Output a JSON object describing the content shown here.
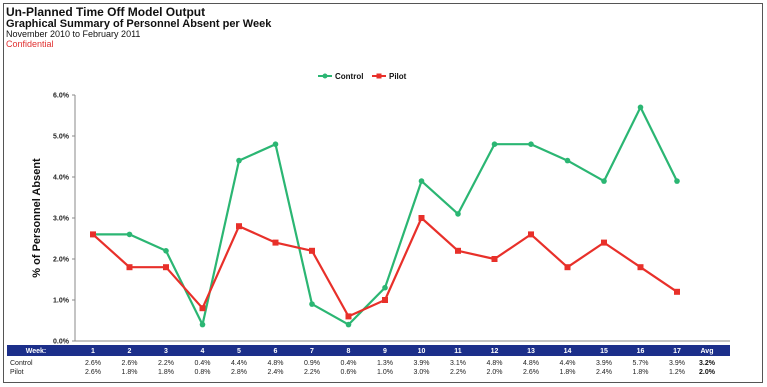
{
  "header": {
    "title": "Un-Planned Time Off Model Output",
    "subtitle": "Graphical Summary of Personnel Absent per Week",
    "date_range": "November 2010 to February 2011",
    "confidential": "Confidential"
  },
  "chart_data": {
    "type": "line",
    "ylabel": "% of Personnel Absent",
    "ylim": [
      0,
      6
    ],
    "yticks": [
      "0.0%",
      "1.0%",
      "2.0%",
      "3.0%",
      "4.0%",
      "5.0%",
      "6.0%"
    ],
    "grid": false,
    "legend_position": "top-center",
    "categories": [
      "1",
      "2",
      "3",
      "4",
      "5",
      "6",
      "7",
      "8",
      "9",
      "10",
      "11",
      "12",
      "13",
      "14",
      "15",
      "16",
      "17"
    ],
    "series": [
      {
        "name": "Control",
        "color": "#2bb673",
        "marker": "circle",
        "values": [
          2.6,
          2.6,
          2.2,
          0.4,
          4.4,
          4.8,
          0.9,
          0.4,
          1.3,
          3.9,
          3.1,
          4.8,
          4.8,
          4.4,
          3.9,
          5.7,
          3.9
        ]
      },
      {
        "name": "Pilot",
        "color": "#e8302a",
        "marker": "square",
        "values": [
          2.6,
          1.8,
          1.8,
          0.8,
          2.8,
          2.4,
          2.2,
          0.6,
          1.0,
          3.0,
          2.2,
          2.0,
          2.6,
          1.8,
          2.4,
          1.8,
          1.2
        ]
      }
    ],
    "table": {
      "header_label": "Week:",
      "avg_label": "Avg",
      "rows": [
        {
          "label": "Control",
          "cells": [
            "2.6%",
            "2.6%",
            "2.2%",
            "0.4%",
            "4.4%",
            "4.8%",
            "0.9%",
            "0.4%",
            "1.3%",
            "3.9%",
            "3.1%",
            "4.8%",
            "4.8%",
            "4.4%",
            "3.9%",
            "5.7%",
            "3.9%"
          ],
          "avg": "3.2%"
        },
        {
          "label": "Pilot",
          "cells": [
            "2.6%",
            "1.8%",
            "1.8%",
            "0.8%",
            "2.8%",
            "2.4%",
            "2.2%",
            "0.6%",
            "1.0%",
            "3.0%",
            "2.2%",
            "2.0%",
            "2.6%",
            "1.8%",
            "2.4%",
            "1.8%",
            "1.2%"
          ],
          "avg": "2.0%"
        }
      ]
    }
  }
}
